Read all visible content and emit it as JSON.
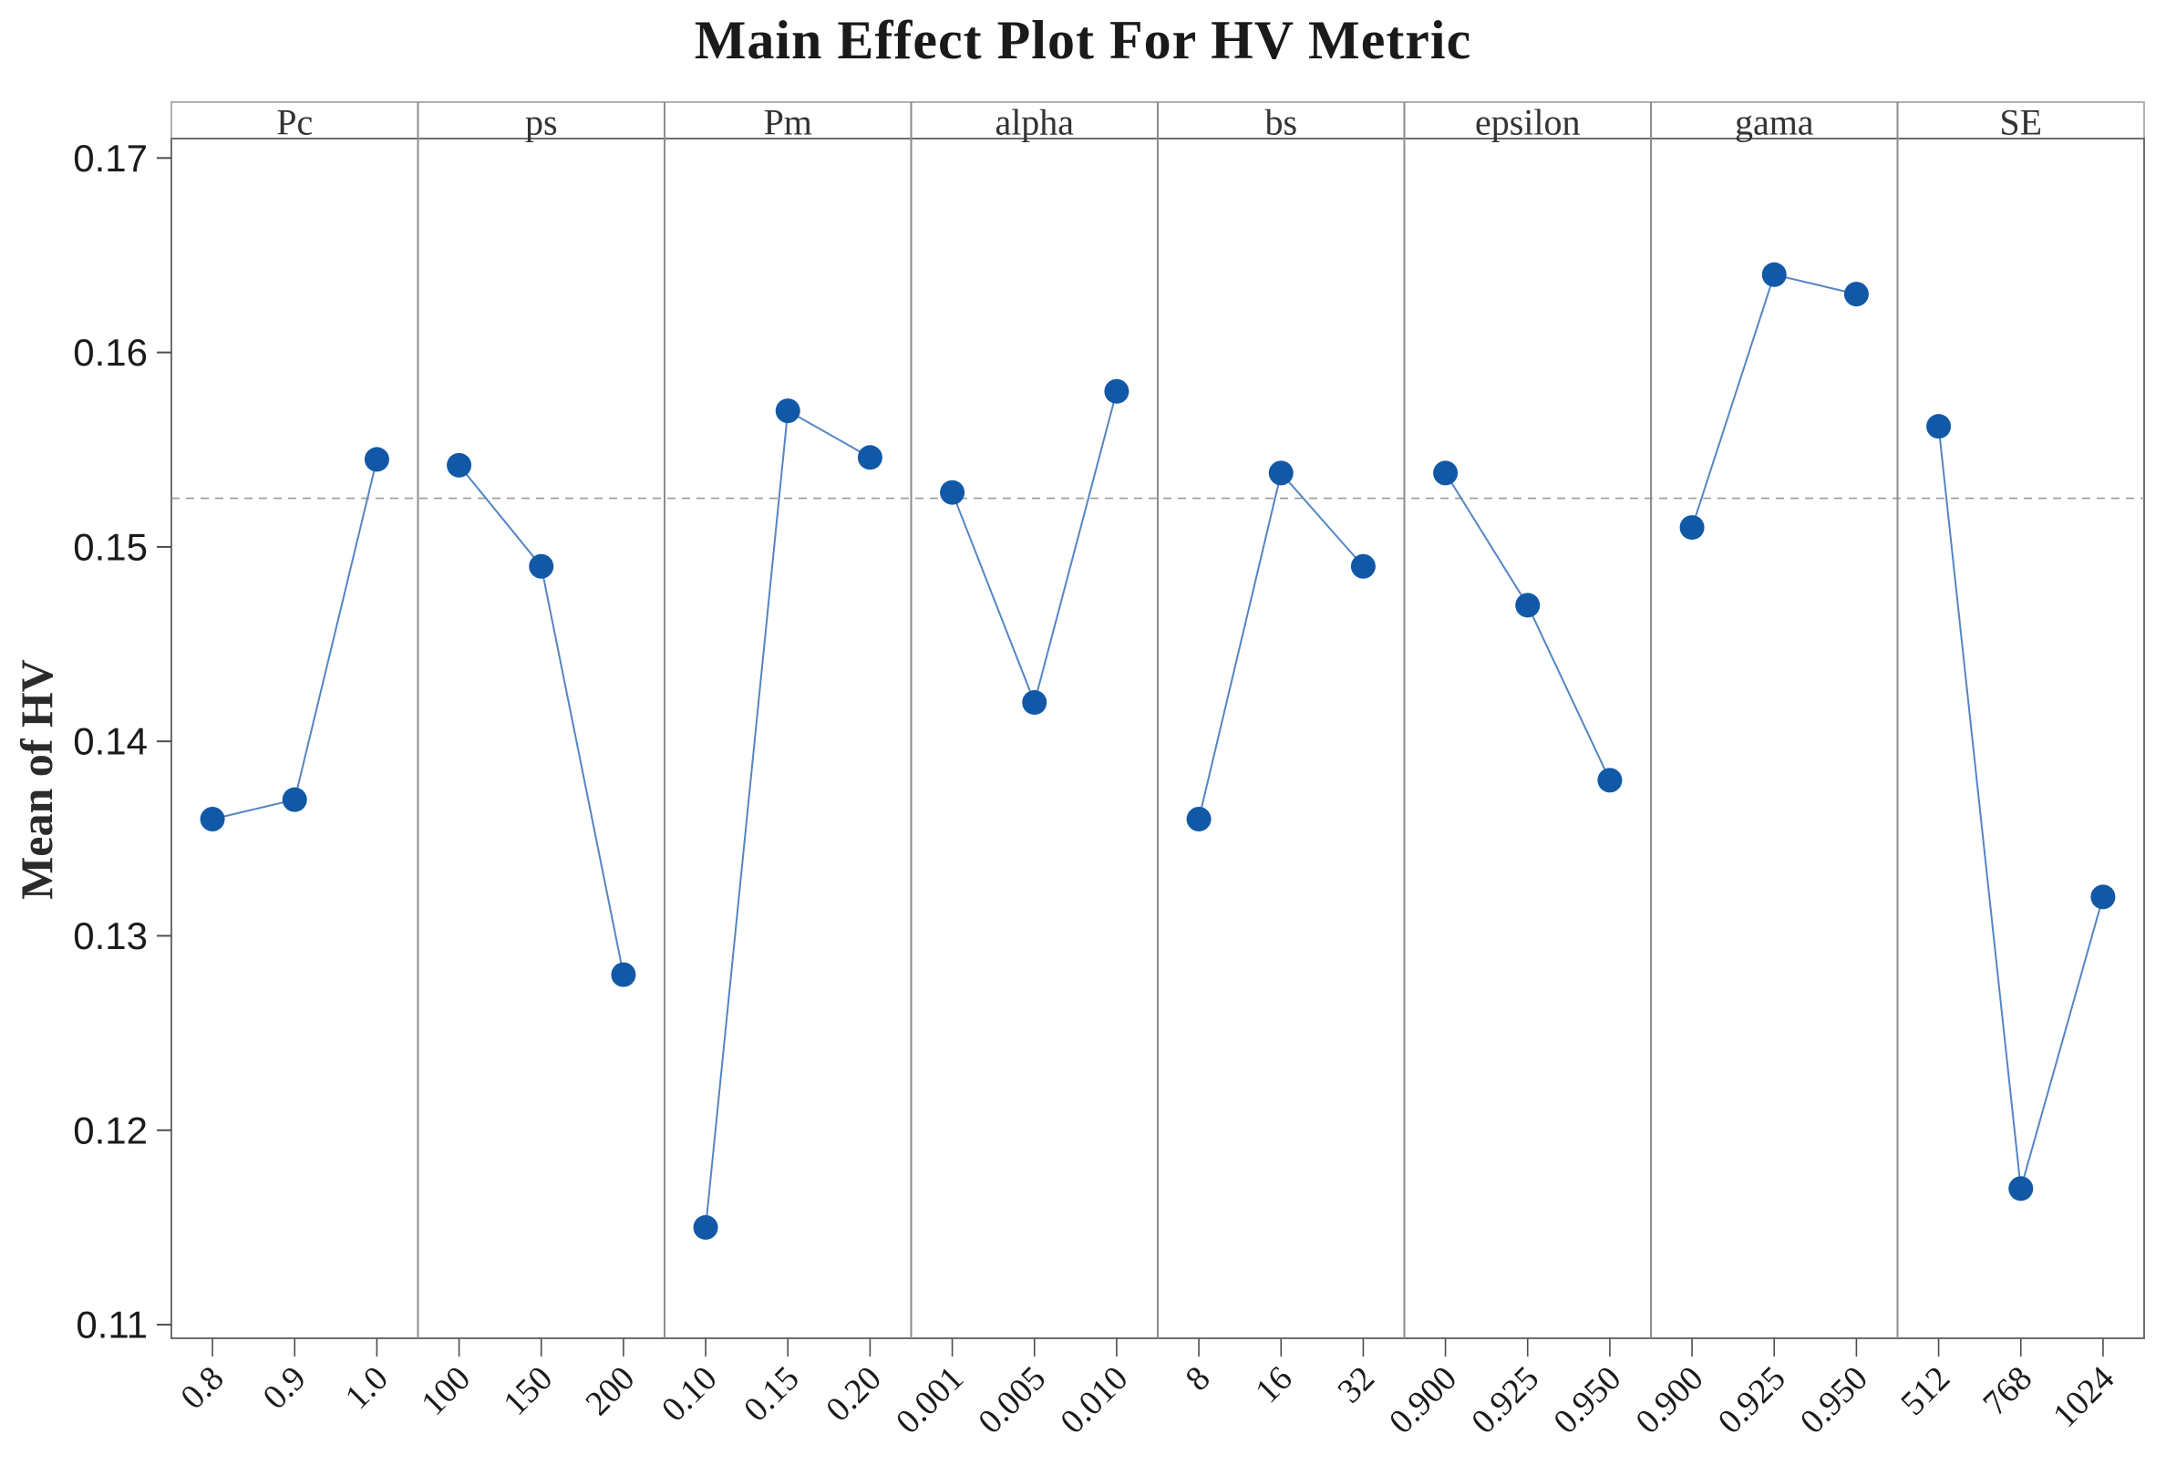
{
  "chart_data": {
    "type": "line",
    "title": "Main Effect Plot For HV Metric",
    "ylabel": "Mean of HV",
    "xlabel": "",
    "ylim": [
      0.1093,
      0.171
    ],
    "yticks": [
      "0.17",
      "0.16",
      "0.15",
      "0.14",
      "0.13",
      "0.12",
      "0.11"
    ],
    "ytick_values": [
      0.17,
      0.16,
      0.15,
      0.14,
      0.13,
      0.12,
      0.11
    ],
    "mean_reference_line": 0.1525,
    "grid": false,
    "legend": "none",
    "panels": [
      {
        "factor": "Pc",
        "levels": [
          "0.8",
          "0.9",
          "1.0"
        ],
        "values": [
          0.136,
          0.137,
          0.1545
        ]
      },
      {
        "factor": "ps",
        "levels": [
          "100",
          "150",
          "200"
        ],
        "values": [
          0.1542,
          0.149,
          0.128
        ]
      },
      {
        "factor": "Pm",
        "levels": [
          "0.10",
          "0.15",
          "0.20"
        ],
        "values": [
          0.115,
          0.157,
          0.1546
        ]
      },
      {
        "factor": "alpha",
        "levels": [
          "0.001",
          "0.005",
          "0.010"
        ],
        "values": [
          0.1528,
          0.142,
          0.158
        ]
      },
      {
        "factor": "bs",
        "levels": [
          "8",
          "16",
          "32"
        ],
        "values": [
          0.136,
          0.1538,
          0.149
        ]
      },
      {
        "factor": "epsilon",
        "levels": [
          "0.900",
          "0.925",
          "0.950"
        ],
        "values": [
          0.1538,
          0.147,
          0.138
        ]
      },
      {
        "factor": "gama",
        "levels": [
          "0.900",
          "0.925",
          "0.950"
        ],
        "values": [
          0.151,
          0.164,
          0.163
        ]
      },
      {
        "factor": "SE",
        "levels": [
          "512",
          "768",
          "1024"
        ],
        "values": [
          0.1562,
          0.117,
          0.132
        ]
      }
    ],
    "colors": {
      "marker": "#1159A6",
      "line": "#5585C2",
      "mean_line": "#9A9A9A",
      "frame": "#6E6E6E",
      "panel_divider": "#8C8C8C",
      "header_border": "#B0B0B0",
      "tick": "#4D4D4D",
      "text": "#1A1A1A",
      "header_text": "#333333",
      "background": "#FFFFFF"
    }
  }
}
